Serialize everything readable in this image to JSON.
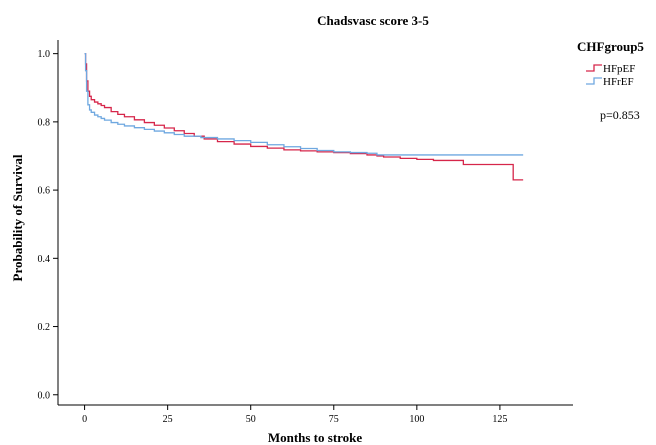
{
  "chart_data": {
    "type": "line",
    "subtype": "kaplan-meier-step",
    "title": "Chadsvasc score 3-5",
    "xlabel": "Months to stroke",
    "ylabel": "Probability of Survival",
    "xlim": [
      -8,
      147
    ],
    "ylim": [
      -0.03,
      1.04
    ],
    "xticks": [
      0,
      25,
      50,
      75,
      100,
      125
    ],
    "yticks": [
      0.0,
      0.2,
      0.4,
      0.6,
      0.8,
      1.0
    ],
    "ytick_labels": [
      "0.0",
      "0.2",
      "0.4",
      "0.6",
      "0.8",
      "1.0"
    ],
    "grid": false,
    "legend": {
      "title": "CHFgroup5",
      "position": "top-right",
      "entries": [
        "HFpEF",
        "HFrEF"
      ]
    },
    "annotation": "p=0.853",
    "series": [
      {
        "name": "HFpEF",
        "color": "#d6264a",
        "points": [
          [
            0,
            1.0
          ],
          [
            0.3,
            0.97
          ],
          [
            0.6,
            0.92
          ],
          [
            1,
            0.89
          ],
          [
            1.5,
            0.875
          ],
          [
            2,
            0.865
          ],
          [
            3,
            0.858
          ],
          [
            4,
            0.853
          ],
          [
            5,
            0.848
          ],
          [
            6,
            0.842
          ],
          [
            8,
            0.83
          ],
          [
            10,
            0.822
          ],
          [
            12,
            0.815
          ],
          [
            15,
            0.806
          ],
          [
            18,
            0.798
          ],
          [
            21,
            0.79
          ],
          [
            24,
            0.782
          ],
          [
            27,
            0.774
          ],
          [
            30,
            0.766
          ],
          [
            33,
            0.758
          ],
          [
            36,
            0.75
          ],
          [
            40,
            0.742
          ],
          [
            45,
            0.735
          ],
          [
            50,
            0.728
          ],
          [
            55,
            0.723
          ],
          [
            60,
            0.718
          ],
          [
            65,
            0.715
          ],
          [
            70,
            0.712
          ],
          [
            75,
            0.71
          ],
          [
            80,
            0.707
          ],
          [
            85,
            0.703
          ],
          [
            88,
            0.7
          ],
          [
            90,
            0.697
          ],
          [
            95,
            0.693
          ],
          [
            100,
            0.69
          ],
          [
            105,
            0.687
          ],
          [
            108,
            0.687
          ],
          [
            114,
            0.675
          ],
          [
            120,
            0.675
          ],
          [
            129,
            0.675
          ],
          [
            129,
            0.63
          ],
          [
            132,
            0.63
          ]
        ]
      },
      {
        "name": "HFrEF",
        "color": "#6fa8e0",
        "points": [
          [
            0,
            1.0
          ],
          [
            0.3,
            0.95
          ],
          [
            0.6,
            0.89
          ],
          [
            1,
            0.85
          ],
          [
            1.5,
            0.835
          ],
          [
            2,
            0.828
          ],
          [
            3,
            0.82
          ],
          [
            4,
            0.815
          ],
          [
            5,
            0.81
          ],
          [
            6,
            0.805
          ],
          [
            8,
            0.798
          ],
          [
            10,
            0.793
          ],
          [
            12,
            0.788
          ],
          [
            15,
            0.783
          ],
          [
            18,
            0.778
          ],
          [
            21,
            0.773
          ],
          [
            24,
            0.768
          ],
          [
            27,
            0.763
          ],
          [
            30,
            0.758
          ],
          [
            35,
            0.754
          ],
          [
            40,
            0.75
          ],
          [
            45,
            0.745
          ],
          [
            50,
            0.74
          ],
          [
            55,
            0.733
          ],
          [
            60,
            0.727
          ],
          [
            65,
            0.722
          ],
          [
            70,
            0.716
          ],
          [
            75,
            0.712
          ],
          [
            80,
            0.71
          ],
          [
            85,
            0.708
          ],
          [
            88,
            0.703
          ],
          [
            95,
            0.703
          ],
          [
            105,
            0.703
          ],
          [
            115,
            0.703
          ],
          [
            125,
            0.703
          ],
          [
            132,
            0.703
          ]
        ]
      }
    ]
  }
}
